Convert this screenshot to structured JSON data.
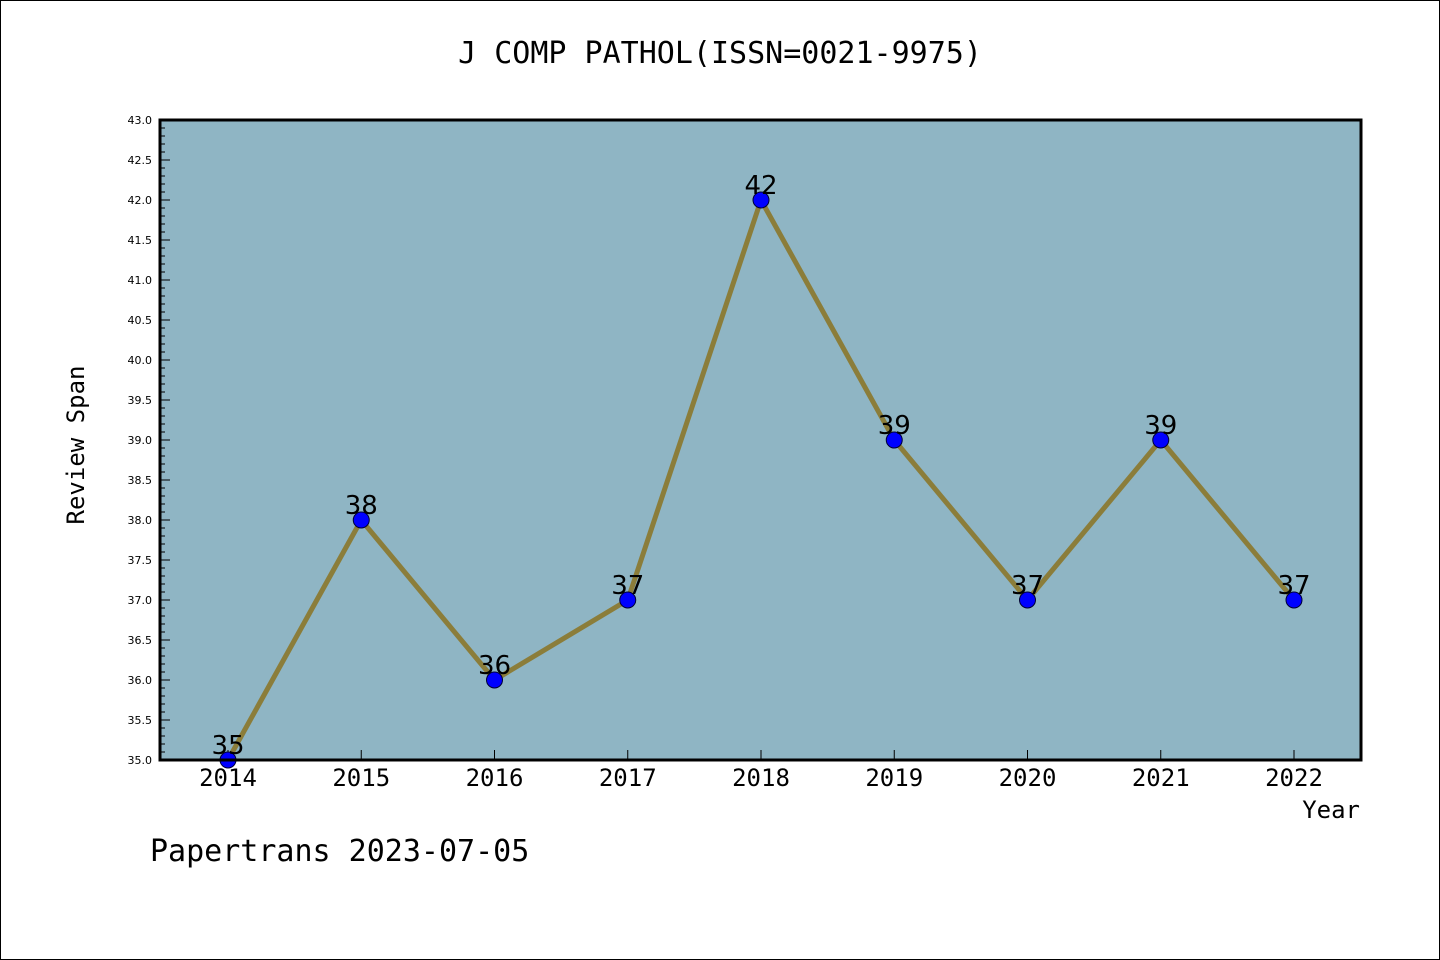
{
  "chart_data": {
    "type": "line",
    "title": "J COMP PATHOL(ISSN=0021-9975)",
    "xlabel": "Year",
    "ylabel": "Review Span",
    "categories": [
      "2014",
      "2015",
      "2016",
      "2017",
      "2018",
      "2019",
      "2020",
      "2021",
      "2022"
    ],
    "values": [
      35,
      38,
      36,
      37,
      42,
      39,
      37,
      39,
      37
    ],
    "data_labels": [
      "35",
      "38",
      "36",
      "37",
      "42",
      "39",
      "37",
      "39",
      "37"
    ],
    "ylim": [
      35.0,
      43.0
    ],
    "yticks": [
      "35.0",
      "35.5",
      "36.0",
      "36.5",
      "37.0",
      "37.5",
      "38.0",
      "38.5",
      "39.0",
      "39.5",
      "40.0",
      "40.5",
      "41.0",
      "41.5",
      "42.0",
      "42.5",
      "43.0"
    ],
    "grid": false,
    "colors": {
      "plot_background": "#8fb5c4",
      "line": "#8b7d3a",
      "marker": "#0000ff"
    }
  },
  "footer": "Papertrans 2023-07-05"
}
